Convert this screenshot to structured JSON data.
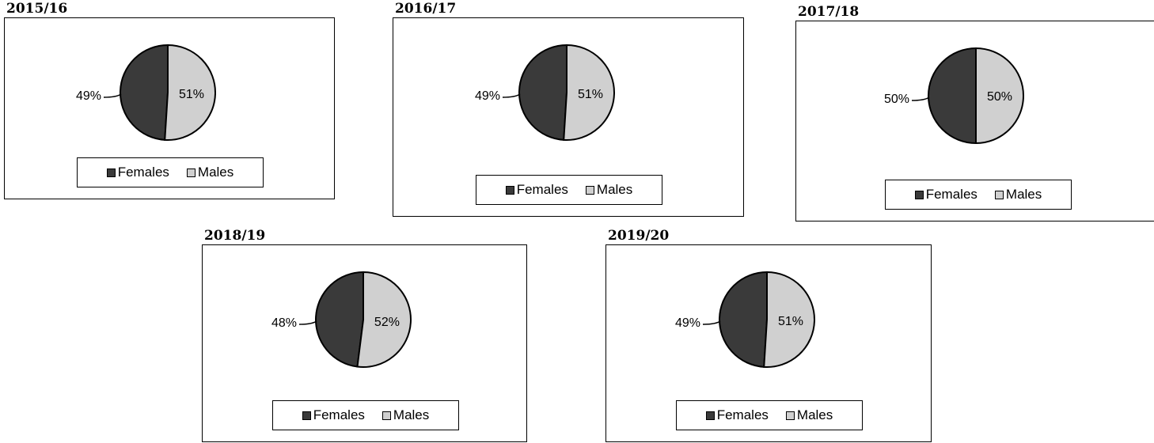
{
  "colors": {
    "females": "#3a3a3a",
    "males": "#d0d0d0"
  },
  "legend_items": [
    "Females",
    "Males"
  ],
  "chart_data": [
    {
      "type": "pie",
      "title": "2015/16",
      "categories": [
        "Females",
        "Males"
      ],
      "values": [
        49,
        51
      ],
      "labels": [
        "49%",
        "51%"
      ],
      "legend": "bottom"
    },
    {
      "type": "pie",
      "title": "2016/17",
      "categories": [
        "Females",
        "Males"
      ],
      "values": [
        49,
        51
      ],
      "labels": [
        "49%",
        "51%"
      ],
      "legend": "bottom"
    },
    {
      "type": "pie",
      "title": "2017/18",
      "categories": [
        "Females",
        "Males"
      ],
      "values": [
        50,
        50
      ],
      "labels": [
        "50%",
        "50%"
      ],
      "legend": "bottom"
    },
    {
      "type": "pie",
      "title": "2018/19",
      "categories": [
        "Females",
        "Males"
      ],
      "values": [
        48,
        52
      ],
      "labels": [
        "48%",
        "52%"
      ],
      "legend": "bottom"
    },
    {
      "type": "pie",
      "title": "2019/20",
      "categories": [
        "Females",
        "Males"
      ],
      "values": [
        49,
        51
      ],
      "labels": [
        "49%",
        "51%"
      ],
      "legend": "bottom"
    }
  ]
}
